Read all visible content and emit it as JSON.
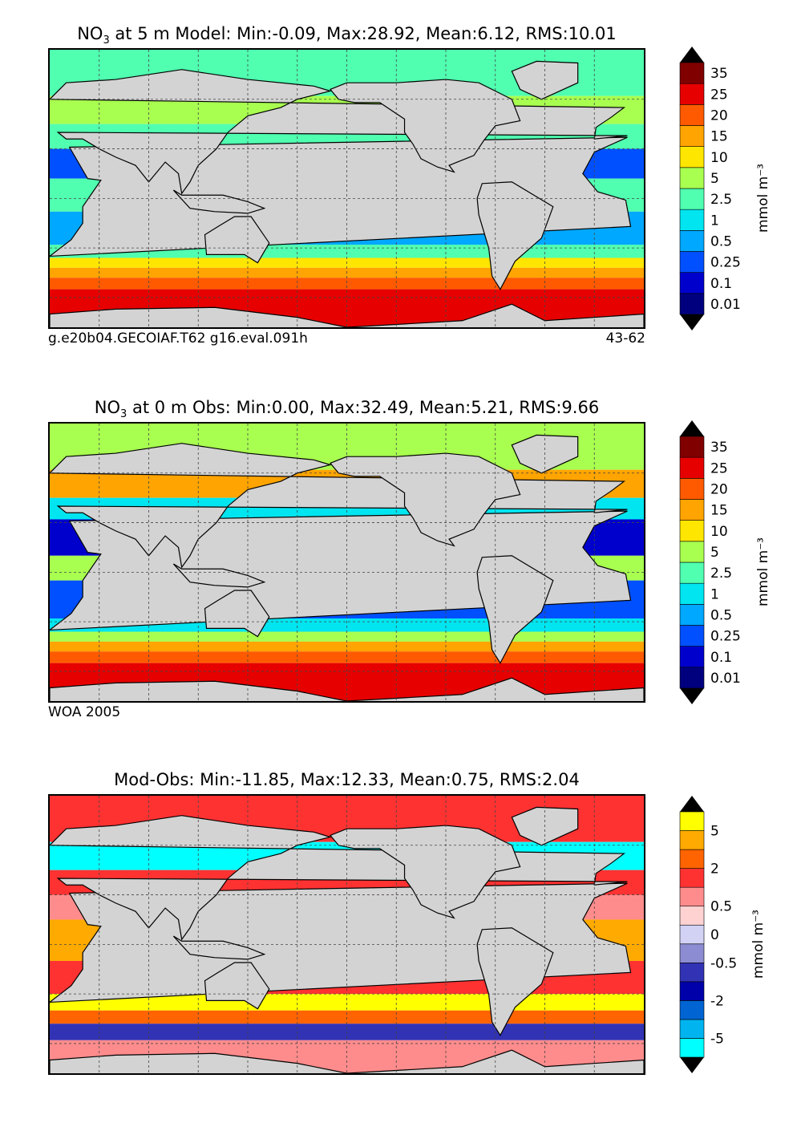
{
  "panels": [
    {
      "id": "model",
      "title_main": "NO",
      "title_sub": "3",
      "title_rest": " at 5 m Model: Min:-0.09, Max:28.92, Mean:6.12, RMS:10.01",
      "note_left": "g.e20b04.GECOIAF.T62 g16.eval.091h",
      "note_right": "43-62",
      "colorbar": {
        "colors": [
          "#00007f",
          "#0000cd",
          "#0050ff",
          "#00a8ff",
          "#00e5f0",
          "#50ffb0",
          "#a8ff50",
          "#ffe600",
          "#ffa400",
          "#ff5a00",
          "#e60000",
          "#800000"
        ],
        "labels": [
          "0.01",
          "0.1",
          "0.25",
          "0.5",
          "1",
          "2.5",
          "5",
          "10",
          "15",
          "20",
          "25",
          "35"
        ],
        "unit": "mmol m⁻³"
      },
      "zonal_bands": [
        {
          "lat_from": 90,
          "lat_to": 62,
          "color": "#50ffb0"
        },
        {
          "lat_from": 62,
          "lat_to": 45,
          "color": "#a8ff50"
        },
        {
          "lat_from": 45,
          "lat_to": 30,
          "color": "#50ffb0"
        },
        {
          "lat_from": 30,
          "lat_to": 12,
          "color": "#0050ff"
        },
        {
          "lat_from": 12,
          "lat_to": -8,
          "color": "#50ffb0"
        },
        {
          "lat_from": -8,
          "lat_to": -28,
          "color": "#00a8ff"
        },
        {
          "lat_from": -28,
          "lat_to": -36,
          "color": "#50ffb0"
        },
        {
          "lat_from": -36,
          "lat_to": -42,
          "color": "#ffe600"
        },
        {
          "lat_from": -42,
          "lat_to": -48,
          "color": "#ffa400"
        },
        {
          "lat_from": -48,
          "lat_to": -55,
          "color": "#ff5a00"
        },
        {
          "lat_from": -55,
          "lat_to": -90,
          "color": "#e60000"
        }
      ]
    },
    {
      "id": "obs",
      "title_main": "NO",
      "title_sub": "3",
      "title_rest": " at 0 m Obs: Min:0.00, Max:32.49, Mean:5.21, RMS:9.66",
      "note_left": "WOA 2005",
      "note_right": "",
      "colorbar": {
        "colors": [
          "#00007f",
          "#0000cd",
          "#0050ff",
          "#00a8ff",
          "#00e5f0",
          "#50ffb0",
          "#a8ff50",
          "#ffe600",
          "#ffa400",
          "#ff5a00",
          "#e60000",
          "#800000"
        ],
        "labels": [
          "0.01",
          "0.1",
          "0.25",
          "0.5",
          "1",
          "2.5",
          "5",
          "10",
          "15",
          "20",
          "25",
          "35"
        ],
        "unit": "mmol m⁻³"
      },
      "zonal_bands": [
        {
          "lat_from": 90,
          "lat_to": 62,
          "color": "#a8ff50"
        },
        {
          "lat_from": 62,
          "lat_to": 45,
          "color": "#ffa400"
        },
        {
          "lat_from": 45,
          "lat_to": 32,
          "color": "#00e5f0"
        },
        {
          "lat_from": 32,
          "lat_to": 10,
          "color": "#0000cd"
        },
        {
          "lat_from": 10,
          "lat_to": -5,
          "color": "#a8ff50"
        },
        {
          "lat_from": -5,
          "lat_to": -28,
          "color": "#0050ff"
        },
        {
          "lat_from": -28,
          "lat_to": -36,
          "color": "#00e5f0"
        },
        {
          "lat_from": -36,
          "lat_to": -42,
          "color": "#a8ff50"
        },
        {
          "lat_from": -42,
          "lat_to": -48,
          "color": "#ffa400"
        },
        {
          "lat_from": -48,
          "lat_to": -55,
          "color": "#ff5a00"
        },
        {
          "lat_from": -55,
          "lat_to": -90,
          "color": "#e60000"
        }
      ]
    },
    {
      "id": "diff",
      "title_main": "Mod-Obs: Min:-11.85, Max:12.33, Mean:0.75, RMS:2.04",
      "title_sub": "",
      "title_rest": "",
      "note_left": "",
      "note_right": "",
      "colorbar": {
        "colors": [
          "#00ffff",
          "#00b4f0",
          "#0064d2",
          "#0000aa",
          "#3232b4",
          "#8c8cd2",
          "#d2d2f5",
          "#ffd2d2",
          "#ff8c8c",
          "#ff3232",
          "#ff6400",
          "#ffaa00",
          "#ffff00"
        ],
        "labels": [
          "-5",
          "-2",
          "-0.5",
          "0",
          "0.5",
          "2",
          "5"
        ],
        "label_positions": [
          1,
          3,
          5,
          6.5,
          8,
          10,
          12
        ],
        "unit": "mmol m⁻³"
      },
      "zonal_bands": [
        {
          "lat_from": 90,
          "lat_to": 62,
          "color": "#ff3232"
        },
        {
          "lat_from": 62,
          "lat_to": 45,
          "color": "#00ffff"
        },
        {
          "lat_from": 45,
          "lat_to": 30,
          "color": "#ff3232"
        },
        {
          "lat_from": 30,
          "lat_to": 15,
          "color": "#ff8c8c"
        },
        {
          "lat_from": 15,
          "lat_to": -10,
          "color": "#ffaa00"
        },
        {
          "lat_from": -10,
          "lat_to": -30,
          "color": "#ff3232"
        },
        {
          "lat_from": -30,
          "lat_to": -40,
          "color": "#ffff00"
        },
        {
          "lat_from": -40,
          "lat_to": -48,
          "color": "#ff6400"
        },
        {
          "lat_from": -48,
          "lat_to": -58,
          "color": "#3232b4"
        },
        {
          "lat_from": -58,
          "lat_to": -90,
          "color": "#ff8c8c"
        }
      ]
    }
  ],
  "map": {
    "projection": "equirectangular",
    "lon_range": [
      20,
      380
    ],
    "lat_range": [
      -78,
      90
    ],
    "land_color": "#d3d3d3",
    "grid_lons": [
      50,
      80,
      110,
      140,
      170,
      200,
      230,
      260,
      290,
      320,
      350
    ],
    "grid_lats": [
      -60,
      -30,
      0,
      30,
      60
    ]
  },
  "continents": [
    {
      "name": "africa",
      "lonlat": [
        [
          -17,
          15
        ],
        [
          -10,
          28
        ],
        [
          10,
          37
        ],
        [
          32,
          31
        ],
        [
          43,
          12
        ],
        [
          51,
          11
        ],
        [
          40,
          -5
        ],
        [
          40,
          -15
        ],
        [
          33,
          -25
        ],
        [
          20,
          -35
        ],
        [
          12,
          -17
        ],
        [
          9,
          -1
        ],
        [
          -8,
          4
        ]
      ]
    },
    {
      "name": "eurasia",
      "lonlat": [
        [
          -10,
          36
        ],
        [
          -9,
          43
        ],
        [
          0,
          49
        ],
        [
          8,
          55
        ],
        [
          20,
          60
        ],
        [
          30,
          70
        ],
        [
          60,
          72
        ],
        [
          100,
          78
        ],
        [
          140,
          72
        ],
        [
          180,
          68
        ],
        [
          190,
          65
        ],
        [
          170,
          60
        ],
        [
          160,
          55
        ],
        [
          140,
          50
        ],
        [
          128,
          40
        ],
        [
          121,
          30
        ],
        [
          110,
          20
        ],
        [
          105,
          10
        ],
        [
          100,
          3
        ],
        [
          98,
          15
        ],
        [
          90,
          22
        ],
        [
          80,
          10
        ],
        [
          72,
          20
        ],
        [
          60,
          25
        ],
        [
          50,
          30
        ],
        [
          40,
          36
        ],
        [
          30,
          36
        ],
        [
          25,
          40
        ],
        [
          10,
          38
        ]
      ]
    },
    {
      "name": "north-america",
      "lonlat": [
        [
          190,
          66
        ],
        [
          200,
          70
        ],
        [
          230,
          70
        ],
        [
          260,
          72
        ],
        [
          280,
          70
        ],
        [
          300,
          60
        ],
        [
          305,
          47
        ],
        [
          290,
          44
        ],
        [
          283,
          35
        ],
        [
          277,
          26
        ],
        [
          262,
          20
        ],
        [
          265,
          16
        ],
        [
          255,
          19
        ],
        [
          245,
          24
        ],
        [
          240,
          33
        ],
        [
          235,
          40
        ],
        [
          235,
          48
        ],
        [
          220,
          58
        ],
        [
          205,
          58
        ],
        [
          195,
          60
        ]
      ]
    },
    {
      "name": "greenland",
      "lonlat": [
        [
          300,
          77
        ],
        [
          315,
          83
        ],
        [
          340,
          82
        ],
        [
          340,
          70
        ],
        [
          318,
          60
        ],
        [
          305,
          66
        ]
      ]
    },
    {
      "name": "south-america",
      "lonlat": [
        [
          282,
          9
        ],
        [
          300,
          10
        ],
        [
          325,
          -5
        ],
        [
          318,
          -24
        ],
        [
          302,
          -38
        ],
        [
          293,
          -55
        ],
        [
          288,
          -47
        ],
        [
          286,
          -30
        ],
        [
          280,
          -10
        ],
        [
          279,
          0
        ]
      ]
    },
    {
      "name": "australia",
      "lonlat": [
        [
          114,
          -22
        ],
        [
          122,
          -17
        ],
        [
          132,
          -11
        ],
        [
          142,
          -11
        ],
        [
          153,
          -27
        ],
        [
          146,
          -39
        ],
        [
          138,
          -34
        ],
        [
          115,
          -34
        ]
      ]
    },
    {
      "name": "antarctica",
      "lonlat": [
        [
          20,
          -70
        ],
        [
          60,
          -67
        ],
        [
          120,
          -66
        ],
        [
          170,
          -72
        ],
        [
          200,
          -78
        ],
        [
          270,
          -74
        ],
        [
          300,
          -64
        ],
        [
          320,
          -74
        ],
        [
          380,
          -70
        ],
        [
          380,
          -90
        ],
        [
          20,
          -90
        ]
      ]
    },
    {
      "name": "indonesia",
      "lonlat": [
        [
          95,
          5
        ],
        [
          105,
          -6
        ],
        [
          120,
          -8
        ],
        [
          140,
          -9
        ],
        [
          150,
          -6
        ],
        [
          140,
          -2
        ],
        [
          125,
          2
        ],
        [
          110,
          2
        ],
        [
          100,
          2
        ]
      ]
    }
  ]
}
